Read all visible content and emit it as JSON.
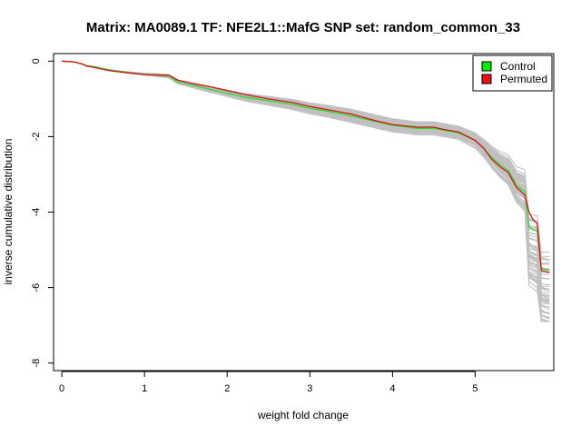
{
  "chart_data": {
    "type": "line",
    "title": "Matrix: MA0089.1 TF: NFE2L1::MafG SNP set: random_common_33",
    "xlabel": "weight fold change",
    "ylabel": "inverse cumulative distribution",
    "xlim": [
      -0.1,
      5.95
    ],
    "ylim": [
      -8.2,
      0.2
    ],
    "x_ticks": [
      0,
      1,
      2,
      3,
      4,
      5
    ],
    "x_tick_labels": [
      "0",
      "1",
      "2",
      "3",
      "4",
      "5"
    ],
    "y_ticks": [
      0,
      -2,
      -4,
      -6,
      -8
    ],
    "y_tick_labels": [
      "0",
      "-2",
      "-4",
      "-6",
      "-8"
    ],
    "grid": false,
    "legend_position": "top-right",
    "legend": [
      {
        "label": "Control",
        "color": "#00ee00"
      },
      {
        "label": "Permuted",
        "color": "#ee1111"
      }
    ],
    "colors": {
      "background_series": "#c0c0c0",
      "control": "#22dd22",
      "permuted": "#dd1111"
    },
    "background_series_count": 60,
    "series": [
      {
        "name": "Control",
        "x": [
          0.0,
          0.15,
          0.25,
          0.3,
          0.4,
          0.5,
          0.6,
          0.8,
          1.0,
          1.2,
          1.3,
          1.4,
          1.6,
          1.8,
          2.0,
          2.2,
          2.5,
          2.8,
          3.0,
          3.2,
          3.5,
          3.8,
          4.0,
          4.3,
          4.5,
          4.6,
          4.8,
          5.0,
          5.1,
          5.2,
          5.3,
          5.4,
          5.5,
          5.6,
          5.65,
          5.7,
          5.75,
          5.8,
          5.9
        ],
        "y": [
          0.0,
          -0.02,
          -0.08,
          -0.12,
          -0.15,
          -0.2,
          -0.24,
          -0.3,
          -0.35,
          -0.38,
          -0.4,
          -0.55,
          -0.65,
          -0.75,
          -0.85,
          -0.95,
          -1.05,
          -1.15,
          -1.25,
          -1.32,
          -1.45,
          -1.6,
          -1.7,
          -1.78,
          -1.78,
          -1.82,
          -1.9,
          -2.1,
          -2.3,
          -2.55,
          -2.75,
          -2.9,
          -3.3,
          -3.45,
          -4.4,
          -4.45,
          -4.5,
          -5.5,
          -5.55
        ]
      },
      {
        "name": "Permuted",
        "x": [
          0.0,
          0.15,
          0.25,
          0.3,
          0.4,
          0.5,
          0.6,
          0.8,
          1.0,
          1.2,
          1.3,
          1.4,
          1.6,
          1.8,
          2.0,
          2.2,
          2.5,
          2.8,
          3.0,
          3.2,
          3.5,
          3.8,
          4.0,
          4.3,
          4.5,
          4.6,
          4.8,
          5.0,
          5.1,
          5.2,
          5.3,
          5.4,
          5.5,
          5.6,
          5.65,
          5.7,
          5.75,
          5.8,
          5.9
        ],
        "y": [
          0.0,
          -0.02,
          -0.08,
          -0.13,
          -0.17,
          -0.22,
          -0.26,
          -0.31,
          -0.35,
          -0.37,
          -0.38,
          -0.5,
          -0.6,
          -0.68,
          -0.78,
          -0.88,
          -1.0,
          -1.1,
          -1.2,
          -1.28,
          -1.4,
          -1.58,
          -1.68,
          -1.75,
          -1.75,
          -1.8,
          -1.88,
          -2.1,
          -2.3,
          -2.6,
          -2.8,
          -2.95,
          -3.35,
          -3.55,
          -4.0,
          -4.2,
          -4.3,
          -5.55,
          -5.6
        ]
      }
    ]
  }
}
